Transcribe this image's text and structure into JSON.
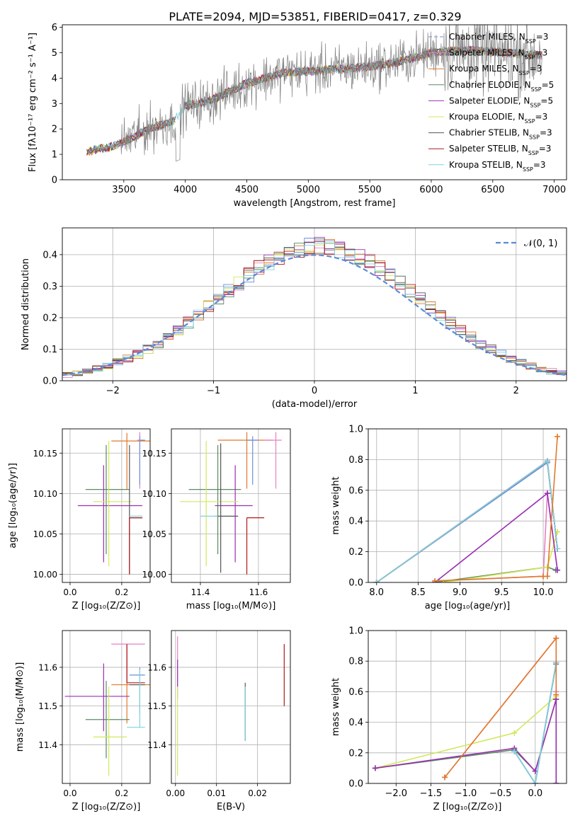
{
  "figure": {
    "title": "PLATE=2094, MJD=53851, FIBERID=0417, z=0.329"
  },
  "chart_data": [
    {
      "id": "spectrum",
      "type": "line",
      "xlabel": "wavelength [Angstrom, rest frame]",
      "ylabel": "Flux [fλ10⁻¹⁷ erg cm⁻² s⁻¹ A⁻¹]",
      "xlim": [
        3000,
        7100
      ],
      "ylim": [
        0,
        6.1
      ],
      "xticks": [
        3500,
        4000,
        4500,
        5000,
        5500,
        6000,
        6500,
        7000
      ],
      "yticks": [
        0,
        1,
        2,
        3,
        4,
        5,
        6
      ],
      "grid": false,
      "legend_position": "top-right",
      "data_color": "#808080",
      "continuum": {
        "x": [
          3200,
          3280,
          3400,
          3500,
          3700,
          3900,
          4000,
          4200,
          4500,
          4800,
          5100,
          5400,
          5700,
          6000,
          6300,
          6600,
          6900
        ],
        "y": [
          1.1,
          1.2,
          1.3,
          1.5,
          2.0,
          2.3,
          2.9,
          3.1,
          3.8,
          4.2,
          4.3,
          4.4,
          4.6,
          5.0,
          5.1,
          5.0,
          4.9
        ]
      },
      "series": [
        {
          "name": "Chabrier MILES, N",
          "sub": "SSP",
          "suffix": "=3",
          "color": "#6f8fd8",
          "dashed": true
        },
        {
          "name": "Salpeter MILES, N",
          "sub": "SSP",
          "suffix": "=3",
          "color": "#e780c4",
          "dashed": false
        },
        {
          "name": "Kroupa MILES, N",
          "sub": "SSP",
          "suffix": "=3",
          "color": "#e07a2a",
          "dashed": false
        },
        {
          "name": "Chabrier ELODIE, N",
          "sub": "SSP",
          "suffix": "=5",
          "color": "#5b8a60",
          "dashed": false
        },
        {
          "name": "Salpeter ELODIE, N",
          "sub": "SSP",
          "suffix": "=5",
          "color": "#9b30b3",
          "dashed": false
        },
        {
          "name": "Kroupa ELODIE, N",
          "sub": "SSP",
          "suffix": "=3",
          "color": "#d2e85a",
          "dashed": false
        },
        {
          "name": "Chabrier STELIB, N",
          "sub": "SSP",
          "suffix": "=3",
          "color": "#555555",
          "dashed": false
        },
        {
          "name": "Salpeter STELIB, N",
          "sub": "SSP",
          "suffix": "=3",
          "color": "#b31818",
          "dashed": false
        },
        {
          "name": "Kroupa STELIB, N",
          "sub": "SSP",
          "suffix": "=3",
          "color": "#7fd2e0",
          "dashed": false
        }
      ]
    },
    {
      "id": "residuals",
      "type": "histogram",
      "xlabel": "(data-model)/error",
      "ylabel": "Normed distribution",
      "xlim": [
        -2.5,
        2.5
      ],
      "ylim": [
        0,
        0.485
      ],
      "xticks": [
        -2,
        -1,
        0,
        1,
        2
      ],
      "yticks": [
        0.0,
        0.1,
        0.2,
        0.3,
        0.4
      ],
      "grid": true,
      "legend_position": "top-right",
      "bin_width": 0.1,
      "bin_start": -2.5,
      "gaussian_label": "𝒩(0, 1)",
      "gaussian_color": "#5b8bd8"
    },
    {
      "id": "age-vs-Z",
      "type": "errorbar",
      "xlabel": "Z [log₁₀(Z/Z⊙)]",
      "ylabel": "age  [log₁₀(age/yr)]",
      "xlim": [
        -0.03,
        0.31
      ],
      "ylim": [
        9.99,
        10.18
      ],
      "xticks": [
        0.0,
        0.2
      ],
      "yticks": [
        10.0,
        10.05,
        10.1,
        10.15
      ],
      "grid": true,
      "points": [
        {
          "x": 0.22,
          "xerr": [
            0.06,
            0.09
          ],
          "y": 10.165,
          "yerr": [
            0.06,
            0.01
          ],
          "color": "#e07a2a"
        },
        {
          "x": 0.27,
          "xerr": [
            0.01,
            0.02
          ],
          "y": 10.166,
          "yerr": [
            0.06,
            0.01
          ],
          "color": "#e780c4"
        },
        {
          "x": 0.27,
          "xerr": [
            0.0,
            0.02
          ],
          "y": 10.166,
          "yerr": [
            0.055,
            0.005
          ],
          "color": "#6f8fd8"
        },
        {
          "x": 0.14,
          "xerr": [
            0.08,
            0.09
          ],
          "y": 10.105,
          "yerr": [
            0.08,
            0.055
          ],
          "color": "#5b8a60"
        },
        {
          "x": 0.13,
          "xerr": [
            0.1,
            0.15
          ],
          "y": 10.085,
          "yerr": [
            0.07,
            0.05
          ],
          "color": "#9b30b3"
        },
        {
          "x": 0.15,
          "xerr": [
            0.06,
            0.09
          ],
          "y": 10.09,
          "yerr": [
            0.08,
            0.075
          ],
          "color": "#d2e85a"
        },
        {
          "x": 0.23,
          "xerr": [
            0.0,
            0.05
          ],
          "y": 10.07,
          "yerr": [
            0.07,
            0.09
          ],
          "color": "#555555"
        },
        {
          "x": 0.23,
          "xerr": [
            0.0,
            0.05
          ],
          "y": 10.07,
          "yerr": [
            0.07,
            0.0
          ],
          "color": "#b31818"
        },
        {
          "x": 0.23,
          "xerr": [
            0.0,
            0.05
          ],
          "y": 10.072,
          "yerr": [
            0.0,
            0.0
          ],
          "color": "#7fd2e0"
        }
      ]
    },
    {
      "id": "age-vs-mass",
      "type": "errorbar",
      "xlabel": "mass [log₁₀(M/M⊙)]",
      "ylabel": "",
      "xlim": [
        11.3,
        11.71
      ],
      "ylim": [
        9.99,
        10.18
      ],
      "xticks": [
        11.4,
        11.6
      ],
      "yticks": [
        10.0,
        10.05,
        10.1,
        10.15
      ],
      "grid": true,
      "points": [
        {
          "x": 11.56,
          "xerr": [
            0.1,
            0.09
          ],
          "y": 10.166,
          "yerr": [
            0.06,
            0.01
          ],
          "color": "#e07a2a"
        },
        {
          "x": 11.66,
          "xerr": [
            0.04,
            0.02
          ],
          "y": 10.166,
          "yerr": [
            0.06,
            0.01
          ],
          "color": "#e780c4"
        },
        {
          "x": 11.58,
          "xerr": [
            0.02,
            0.02
          ],
          "y": 10.166,
          "yerr": [
            0.055,
            0.005
          ],
          "color": "#6f8fd8"
        },
        {
          "x": 11.46,
          "xerr": [
            0.1,
            0.08
          ],
          "y": 10.105,
          "yerr": [
            0.08,
            0.055
          ],
          "color": "#5b8a60"
        },
        {
          "x": 11.52,
          "xerr": [
            0.07,
            0.06
          ],
          "y": 10.085,
          "yerr": [
            0.07,
            0.05
          ],
          "color": "#9b30b3"
        },
        {
          "x": 11.42,
          "xerr": [
            0.09,
            0.11
          ],
          "y": 10.09,
          "yerr": [
            0.08,
            0.075
          ],
          "color": "#d2e85a"
        },
        {
          "x": 11.47,
          "xerr": [
            0.02,
            0.06
          ],
          "y": 10.072,
          "yerr": [
            0.07,
            0.09
          ],
          "color": "#555555"
        },
        {
          "x": 11.56,
          "xerr": [
            0.0,
            0.06
          ],
          "y": 10.07,
          "yerr": [
            0.07,
            0.0
          ],
          "color": "#b31818"
        },
        {
          "x": 11.44,
          "xerr": [
            0.04,
            0.02
          ],
          "y": 10.072,
          "yerr": [
            0.0,
            0.0
          ],
          "color": "#7fd2e0"
        }
      ]
    },
    {
      "id": "massweight-vs-age",
      "type": "line",
      "xlabel": "age  [log₁₀(age/yr)]",
      "ylabel": "mass weight",
      "xlim": [
        7.9,
        10.28
      ],
      "ylim": [
        0,
        1.0
      ],
      "xticks": [
        8.0,
        8.5,
        9.0,
        9.5,
        10.0
      ],
      "yticks": [
        0.0,
        0.2,
        0.4,
        0.6,
        0.8,
        1.0
      ],
      "grid": true,
      "series": [
        {
          "color": "#e780c4",
          "x": [
            8.75,
            10.0,
            10.05,
            10.17
          ],
          "y": [
            0.01,
            0.04,
            0.58,
            0.08
          ]
        },
        {
          "color": "#6f8fd8",
          "x": [
            8.0,
            10.05,
            10.17
          ],
          "y": [
            0.0,
            0.78,
            0.22
          ]
        },
        {
          "color": "#5b8a60",
          "x": [
            8.7,
            10.05,
            10.15
          ],
          "y": [
            0.0,
            0.1,
            0.08
          ]
        },
        {
          "color": "#d2e85a",
          "x": [
            8.8,
            10.05,
            10.17
          ],
          "y": [
            0.0,
            0.1,
            0.33
          ]
        },
        {
          "color": "#9b30b3",
          "x": [
            8.7,
            10.05,
            10.17
          ],
          "y": [
            0.0,
            0.58,
            0.08
          ]
        },
        {
          "color": "#555555",
          "x": [
            8.0,
            10.05,
            10.17
          ],
          "y": [
            0.0,
            0.79,
            0.22
          ]
        },
        {
          "color": "#b31818",
          "x": [
            8.0,
            10.05,
            10.17
          ],
          "y": [
            0.0,
            0.79,
            0.22
          ]
        },
        {
          "color": "#7fd2e0",
          "x": [
            8.0,
            10.05,
            10.17
          ],
          "y": [
            0.0,
            0.79,
            0.22
          ]
        },
        {
          "color": "#e07a2a",
          "x": [
            8.7,
            10.0,
            10.05,
            10.17
          ],
          "y": [
            0.01,
            0.04,
            0.04,
            0.95
          ]
        }
      ]
    },
    {
      "id": "mass-vs-Z",
      "type": "errorbar",
      "xlabel": "Z [log₁₀(Z/Z⊙)]",
      "ylabel": "mass [log₁₀(M/M⊙)]",
      "xlim": [
        -0.03,
        0.31
      ],
      "ylim": [
        11.3,
        11.695
      ],
      "xticks": [
        0.0,
        0.2
      ],
      "yticks": [
        11.4,
        11.5,
        11.6
      ],
      "grid": true,
      "points": [
        {
          "x": 0.22,
          "xerr": [
            0.06,
            0.09
          ],
          "y": 11.555,
          "yerr": [
            0.1,
            0.1
          ],
          "color": "#e07a2a"
        },
        {
          "x": 0.22,
          "xerr": [
            0.06,
            0.07
          ],
          "y": 11.66,
          "yerr": [
            0.1,
            0.0
          ],
          "color": "#e780c4"
        },
        {
          "x": 0.27,
          "xerr": [
            0.04,
            0.02
          ],
          "y": 11.58,
          "yerr": [
            0.1,
            0.02
          ],
          "color": "#6f8fd8"
        },
        {
          "x": 0.14,
          "xerr": [
            0.08,
            0.09
          ],
          "y": 11.465,
          "yerr": [
            0.1,
            0.1
          ],
          "color": "#5b8a60"
        },
        {
          "x": 0.13,
          "xerr": [
            0.15,
            0.1
          ],
          "y": 11.525,
          "yerr": [
            0.09,
            0.085
          ],
          "color": "#9b30b3"
        },
        {
          "x": 0.15,
          "xerr": [
            0.06,
            0.07
          ],
          "y": 11.42,
          "yerr": [
            0.1,
            0.13
          ],
          "color": "#d2e85a"
        },
        {
          "x": 0.23,
          "xerr": [
            0.0,
            0.06
          ],
          "y": 11.555,
          "yerr": [
            0.0,
            0.0
          ],
          "color": "#555555"
        },
        {
          "x": 0.22,
          "xerr": [
            0.0,
            0.07
          ],
          "y": 11.56,
          "yerr": [
            0.0,
            0.1
          ],
          "color": "#b31818"
        },
        {
          "x": 0.27,
          "xerr": [
            0.05,
            0.02
          ],
          "y": 11.445,
          "yerr": [
            0.0,
            0.15
          ],
          "color": "#7fd2e0"
        }
      ]
    },
    {
      "id": "mass-vs-ebv",
      "type": "errorbar",
      "xlabel": "E(B-V)",
      "ylabel": "",
      "xlim": [
        -0.001,
        0.028
      ],
      "ylim": [
        11.3,
        11.695
      ],
      "xticks": [
        0.0,
        0.01,
        0.02
      ],
      "yticks": [
        11.4,
        11.5,
        11.6
      ],
      "grid": true,
      "points": [
        {
          "x": 0.0005,
          "xerr": [
            0.0,
            0.0
          ],
          "y": 11.6,
          "yerr": [
            0.08,
            0.08
          ],
          "color": "#e780c4"
        },
        {
          "x": 0.0005,
          "xerr": [
            0.0,
            0.0
          ],
          "y": 11.6,
          "yerr": [
            0.05,
            0.02
          ],
          "color": "#9b30b3"
        },
        {
          "x": 0.0005,
          "xerr": [
            0.0,
            0.0
          ],
          "y": 11.45,
          "yerr": [
            0.13,
            0.1
          ],
          "color": "#d2e85a"
        },
        {
          "x": 0.017,
          "xerr": [
            0.0,
            0.0
          ],
          "y": 11.5,
          "yerr": [
            0.09,
            0.06
          ],
          "color": "#555555"
        },
        {
          "x": 0.017,
          "xerr": [
            0.0,
            0.0
          ],
          "y": 11.48,
          "yerr": [
            0.07,
            0.07
          ],
          "color": "#7fd2e0"
        },
        {
          "x": 0.0265,
          "xerr": [
            0.0,
            0.0
          ],
          "y": 11.58,
          "yerr": [
            0.08,
            0.08
          ],
          "color": "#b31818"
        }
      ]
    },
    {
      "id": "massweight-vs-Z",
      "type": "line",
      "xlabel": "Z [log₁₀(Z/Z⊙)]",
      "ylabel": "mass weight",
      "xlim": [
        -2.4,
        0.45
      ],
      "ylim": [
        0,
        1.0
      ],
      "xticks": [
        -2.0,
        -1.5,
        -1.0,
        -0.5,
        0.0
      ],
      "yticks": [
        0.0,
        0.2,
        0.4,
        0.6,
        0.8,
        1.0
      ],
      "grid": true,
      "series": [
        {
          "color": "#d2e85a",
          "x": [
            -2.3,
            -0.3,
            0.3
          ],
          "y": [
            0.1,
            0.33,
            0.57
          ]
        },
        {
          "color": "#5b8a60",
          "x": [
            -2.3,
            -0.3,
            0.0,
            0.3,
            0.3
          ],
          "y": [
            0.1,
            0.22,
            0.08,
            0.55,
            0.0
          ]
        },
        {
          "color": "#9b30b3",
          "x": [
            -2.3,
            -0.3,
            0.0,
            0.3,
            0.3
          ],
          "y": [
            0.1,
            0.23,
            0.08,
            0.55,
            0.0
          ]
        },
        {
          "color": "#6f8fd8",
          "x": [
            -0.3,
            0.0,
            0.3
          ],
          "y": [
            0.21,
            0.0,
            0.78
          ]
        },
        {
          "color": "#555555",
          "x": [
            -0.3,
            0.0,
            0.3
          ],
          "y": [
            0.21,
            0.0,
            0.79
          ]
        },
        {
          "color": "#7fd2e0",
          "x": [
            -0.3,
            0.0,
            0.3
          ],
          "y": [
            0.21,
            0.0,
            0.79
          ]
        },
        {
          "color": "#e780c4",
          "x": [
            -1.3,
            0.3,
            0.3
          ],
          "y": [
            0.04,
            0.95,
            0.6
          ]
        },
        {
          "color": "#e07a2a",
          "x": [
            -1.3,
            0.3,
            0.3
          ],
          "y": [
            0.04,
            0.95,
            0.58
          ]
        }
      ]
    }
  ]
}
